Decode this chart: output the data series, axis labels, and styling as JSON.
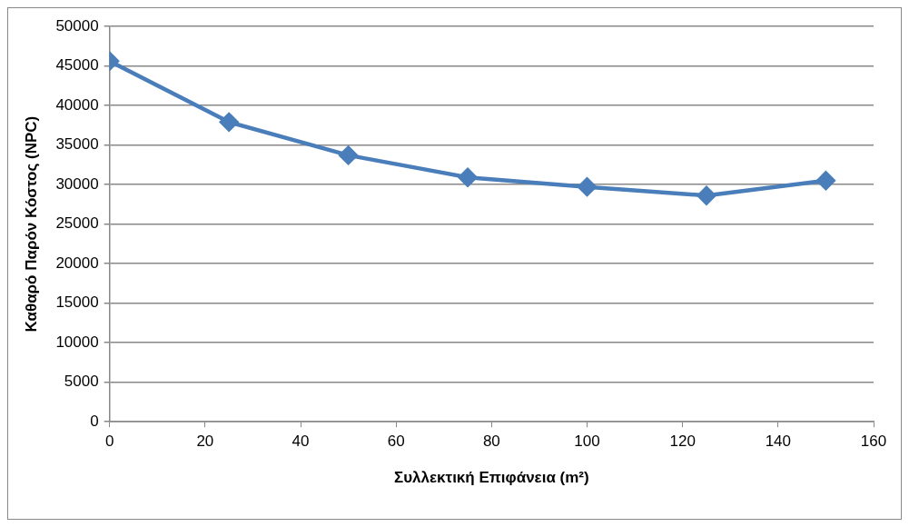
{
  "chart_data": {
    "type": "line",
    "xlabel": "Συλλεκτική Επιφάνεια (m²)",
    "ylabel": "Καθαρό Παρόν Κόστος (NPC)",
    "x": [
      0,
      25,
      50,
      75,
      100,
      125,
      150
    ],
    "series": [
      {
        "color": "#4a7ebb",
        "values": [
          45600,
          37900,
          33700,
          30900,
          29700,
          28600,
          30500
        ]
      }
    ],
    "xlim": [
      0,
      160
    ],
    "xticks": [
      0,
      20,
      40,
      60,
      80,
      100,
      120,
      140,
      160
    ],
    "ylim": [
      0,
      50000
    ],
    "yticks": [
      0,
      5000,
      10000,
      15000,
      20000,
      25000,
      30000,
      35000,
      40000,
      45000,
      50000
    ],
    "grid": "y",
    "legend": false,
    "marker": "diamond",
    "line_style": "solid"
  }
}
